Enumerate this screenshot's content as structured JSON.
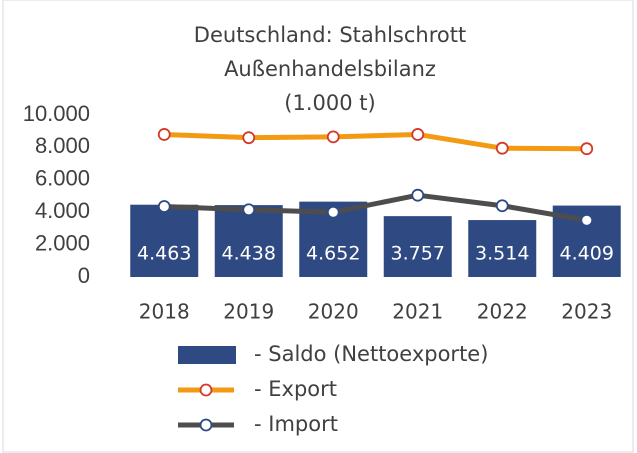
{
  "chart_data": {
    "type": "bar_line",
    "title": [
      "Deutschland: Stahlschrott",
      "Außenhandelsbilanz",
      "(1.000 t)"
    ],
    "categories": [
      "2018",
      "2019",
      "2020",
      "2021",
      "2022",
      "2023"
    ],
    "series": [
      {
        "name": "- Saldo (Nettoexporte)",
        "type": "bar",
        "color": "#2f4a82",
        "values": [
          4463,
          4438,
          4652,
          3757,
          3514,
          4409
        ],
        "value_labels": [
          "4.463",
          "4.438",
          "4.652",
          "3.757",
          "3.514",
          "4.409"
        ]
      },
      {
        "name": "- Export",
        "type": "line",
        "color": "#f39a12",
        "marker_color": "#d43a2a",
        "values": [
          8800,
          8600,
          8650,
          8800,
          7950,
          7920
        ]
      },
      {
        "name": "- Import",
        "type": "line",
        "color": "#4d4d4d",
        "marker_color": "#2f4a82",
        "values": [
          4350,
          4150,
          4000,
          5050,
          4400,
          3500
        ]
      }
    ],
    "ylim": [
      0,
      10000
    ],
    "yticks": [
      0,
      {
        "value": 2000,
        "label": "2.000"
      },
      {
        "value": 4000,
        "label": "4.000"
      },
      {
        "value": 6000,
        "label": "6.000"
      },
      {
        "value": 8000,
        "label": "8.000"
      },
      {
        "value": 10000,
        "label": "10.000"
      }
    ],
    "grid": false
  }
}
